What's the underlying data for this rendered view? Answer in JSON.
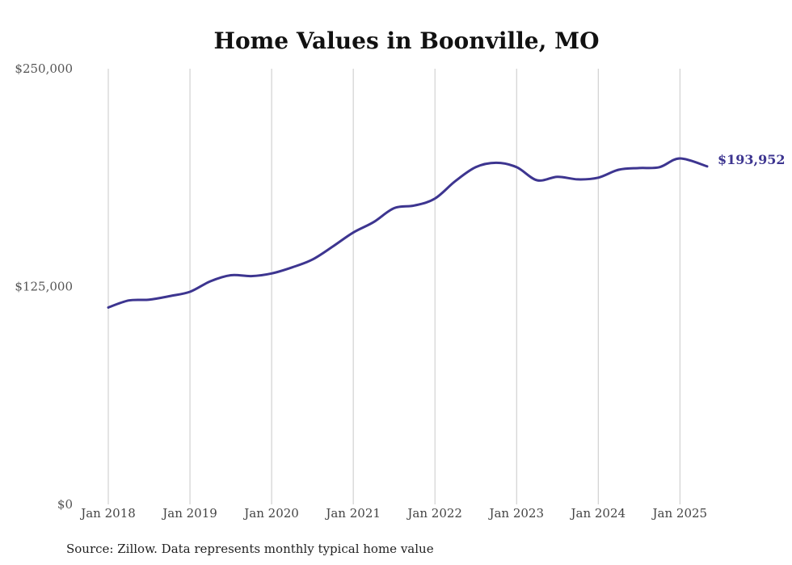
{
  "chart_data": {
    "type": "line",
    "title": "Home Values in Boonville, MO",
    "source": "Source: Zillow. Data represents monthly typical home value",
    "xlabel": "",
    "ylabel": "",
    "ylim": [
      0,
      250000
    ],
    "yticks": [
      {
        "value": 0,
        "label": "$0"
      },
      {
        "value": 125000,
        "label": "$125,000"
      },
      {
        "value": 250000,
        "label": "$250,000"
      }
    ],
    "xticks": [
      {
        "value": "2018-01",
        "label": "Jan 2018"
      },
      {
        "value": "2019-01",
        "label": "Jan 2019"
      },
      {
        "value": "2020-01",
        "label": "Jan 2020"
      },
      {
        "value": "2021-01",
        "label": "Jan 2021"
      },
      {
        "value": "2022-01",
        "label": "Jan 2022"
      },
      {
        "value": "2023-01",
        "label": "Jan 2023"
      },
      {
        "value": "2024-01",
        "label": "Jan 2024"
      },
      {
        "value": "2025-01",
        "label": "Jan 2025"
      }
    ],
    "xlim": [
      "2018-01",
      "2025-05"
    ],
    "grid": "vertical",
    "line_color": "#3d3590",
    "end_label": "$193,952",
    "series": [
      {
        "x": [
          "2018-01",
          "2018-04",
          "2018-07",
          "2018-10",
          "2019-01",
          "2019-04",
          "2019-07",
          "2019-10",
          "2020-01",
          "2020-04",
          "2020-07",
          "2020-10",
          "2021-01",
          "2021-04",
          "2021-07",
          "2021-10",
          "2022-01",
          "2022-04",
          "2022-07",
          "2022-10",
          "2023-01",
          "2023-04",
          "2023-07",
          "2023-10",
          "2024-01",
          "2024-04",
          "2024-07",
          "2024-10",
          "2025-01",
          "2025-05"
        ],
        "values": [
          113000,
          117000,
          117500,
          119500,
          122000,
          128000,
          131500,
          131000,
          132500,
          136000,
          140500,
          148000,
          156000,
          162000,
          170000,
          171500,
          175500,
          185500,
          193500,
          196000,
          193500,
          186000,
          188000,
          186500,
          187500,
          192000,
          193000,
          193500,
          198500,
          193952
        ]
      }
    ]
  }
}
